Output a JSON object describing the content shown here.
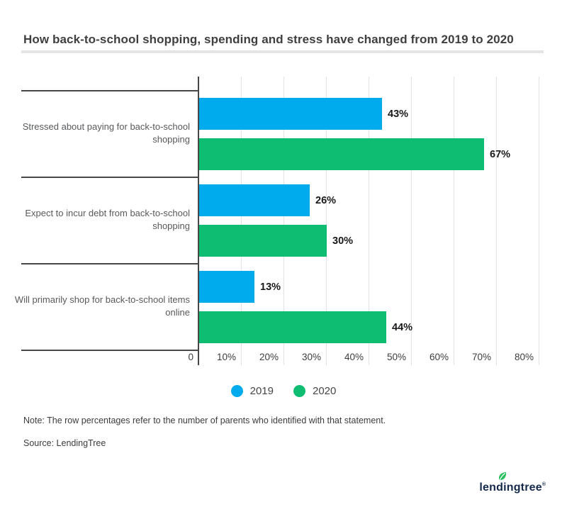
{
  "title": "How back-to-school shopping, spending and stress have changed from 2019 to 2020",
  "chart_data": {
    "type": "bar",
    "orientation": "horizontal",
    "title": "How back-to-school shopping, spending and stress have changed from 2019 to 2020",
    "categories": [
      "Stressed about paying for back-to-school shopping",
      "Expect to incur debt from back-to-school shopping",
      "Will primarily shop for back-to-school items online"
    ],
    "series": [
      {
        "name": "2019",
        "color": "#00ABED",
        "values": [
          43,
          26,
          13
        ]
      },
      {
        "name": "2020",
        "color": "#0EBD72",
        "values": [
          67,
          30,
          44
        ]
      }
    ],
    "value_suffix": "%",
    "value_labels": [
      "43%",
      "67%",
      "26%",
      "30%",
      "13%",
      "44%"
    ],
    "xlim": [
      0,
      80
    ],
    "x_ticks": [
      0,
      10,
      20,
      30,
      40,
      50,
      60,
      70,
      80
    ],
    "x_tick_labels": [
      "0",
      "10%",
      "20%",
      "30%",
      "40%",
      "50%",
      "60%",
      "70%",
      "80%"
    ],
    "grid": true,
    "legend_position": "bottom"
  },
  "legend": {
    "items": [
      {
        "label": "2019",
        "color": "#00ABED"
      },
      {
        "label": "2020",
        "color": "#0EBD72"
      }
    ]
  },
  "note": "Note: The row percentages refer to the number of parents who identified with that statement.",
  "source": "Source: LendingTree",
  "footer": {
    "logo_text": "lendingtree",
    "logo_registered": "®",
    "logo_color": "#15294B",
    "leaf_color": "#22BE5B"
  },
  "colors": {
    "series_2019": "#00ABED",
    "series_2020": "#0EBD72",
    "axis_line": "#474747",
    "gridline": "#E3E3E3",
    "title_text": "#3F3F3F",
    "category_text": "#58595B",
    "value_text": "#191919"
  }
}
